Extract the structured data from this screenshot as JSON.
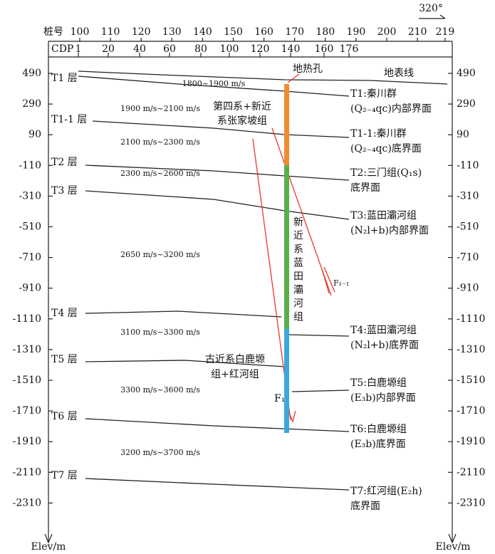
{
  "orientation": "320°",
  "top_axis": {
    "label": "桩号",
    "stations": [
      100,
      110,
      120,
      130,
      140,
      150,
      160,
      170,
      180,
      190,
      200,
      210,
      219
    ]
  },
  "cdp": {
    "label": "CDP",
    "values": [
      1,
      20,
      40,
      60,
      80,
      100,
      120,
      140,
      160,
      176
    ]
  },
  "elevation": {
    "unit_label": "Elev/m",
    "ticks": [
      490,
      290,
      90,
      -110,
      -310,
      -510,
      -710,
      -910,
      -1110,
      -1310,
      -1510,
      -1710,
      -1910,
      -2110,
      -2310
    ]
  },
  "surface_label": "地表线",
  "horizons": [
    {
      "left_label": "T1 层",
      "right_label": [
        "T1:秦川群",
        "(Q₂₋₄qc)内部界面"
      ]
    },
    {
      "left_label": "T1-1 层",
      "right_label": [
        "T1-1:秦川群",
        "(Q₂₋₄qc)底界面"
      ]
    },
    {
      "left_label": "T2 层",
      "right_label": [
        "T2:三门组(Q₁s)",
        "底界面"
      ]
    },
    {
      "left_label": "T3 层",
      "right_label": [
        "T3:蓝田灞河组",
        "(N₂l+b)内部界面"
      ]
    },
    {
      "left_label": "T4 层",
      "right_label": [
        "T4:蓝田灞河组",
        "(N₂l+b)底界面"
      ]
    },
    {
      "left_label": "T5 层",
      "right_label": [
        "T5:白鹿塬组",
        "(E₃b)内部界面"
      ]
    },
    {
      "left_label": "T6 层",
      "right_label": [
        "T6:白鹿塬组",
        "(E₃b)底界面"
      ]
    },
    {
      "left_label": "T7 层",
      "right_label": [
        "T7:红河组(E₂h)",
        "底界面"
      ]
    }
  ],
  "velocities": [
    "1800~1900 m/s",
    "1900 m/s~2100 m/s",
    "2100 m/s~2300 m/s",
    "2300 m/s~2600 m/s",
    "2650 m/s~3200 m/s",
    "3100 m/s~3300 m/s",
    "3300 m/s~3600 m/s",
    "3200 m/s~3700 m/s"
  ],
  "well": {
    "label": "地热孔",
    "formations": [
      {
        "label": [
          "第四系+新近",
          "系张家坡组"
        ]
      },
      {
        "label": "新近系蓝田灞河组"
      },
      {
        "label": [
          "古近系白鹿塬",
          "组+红河组"
        ]
      }
    ]
  },
  "faults": [
    "F₁",
    "F₁₋₁"
  ]
}
